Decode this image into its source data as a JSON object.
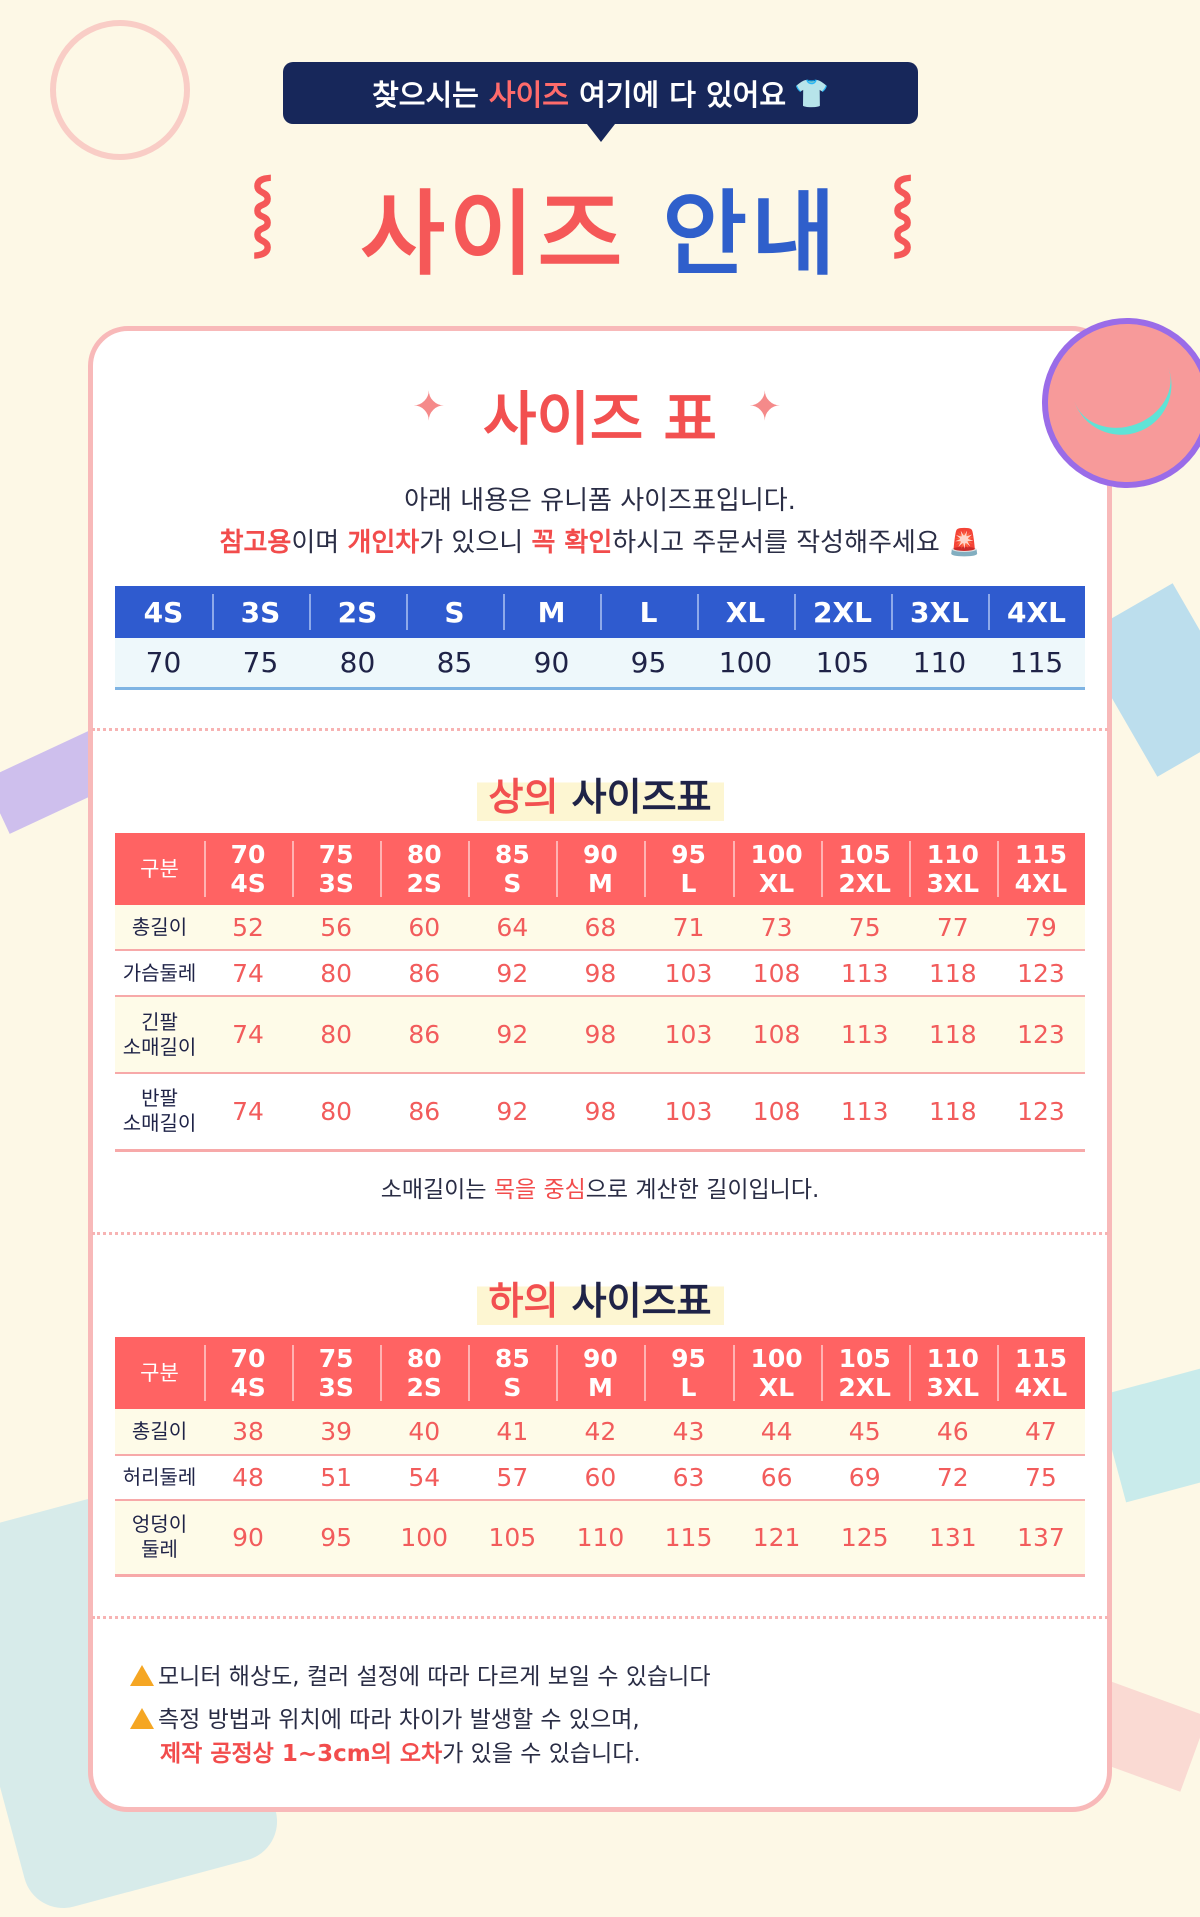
{
  "banner": {
    "pre": "찾으시는 ",
    "highlight": "사이즈",
    "post": " 여기에 다 있어요",
    "icon": "tshirt-icon"
  },
  "title": {
    "part1": "사이즈",
    "part2": "안내"
  },
  "card": {
    "subtitle": "사이즈 표",
    "intro_line1": "아래 내용은 유니폼 사이즈표입니다.",
    "intro_line2": {
      "r1": "참고용",
      "t1": "이며 ",
      "r2": "개인차",
      "t2": "가 있으니 ",
      "r3": "꼭 확인",
      "t3": "하시고 주문서를 작성해주세요",
      "icon": "siren-icon"
    },
    "size_bar": {
      "sizes": [
        "4S",
        "3S",
        "2S",
        "S",
        "M",
        "L",
        "XL",
        "2XL",
        "3XL",
        "4XL"
      ],
      "numbers": [
        "70",
        "75",
        "80",
        "85",
        "90",
        "95",
        "100",
        "105",
        "110",
        "115"
      ]
    },
    "top": {
      "title_red": "상의",
      "title_rest": " 사이즈표",
      "header": [
        [
          "구분",
          ""
        ],
        [
          "70",
          "4S"
        ],
        [
          "75",
          "3S"
        ],
        [
          "80",
          "2S"
        ],
        [
          "85",
          "S"
        ],
        [
          "90",
          "M"
        ],
        [
          "95",
          "L"
        ],
        [
          "100",
          "XL"
        ],
        [
          "105",
          "2XL"
        ],
        [
          "110",
          "3XL"
        ],
        [
          "115",
          "4XL"
        ]
      ],
      "rows": [
        {
          "label": [
            "총길이"
          ],
          "values": [
            "52",
            "56",
            "60",
            "64",
            "68",
            "71",
            "73",
            "75",
            "77",
            "79"
          ]
        },
        {
          "label": [
            "가슴둘레"
          ],
          "values": [
            "74",
            "80",
            "86",
            "92",
            "98",
            "103",
            "108",
            "113",
            "118",
            "123"
          ]
        },
        {
          "label": [
            "긴팔",
            "소매길이"
          ],
          "values": [
            "74",
            "80",
            "86",
            "92",
            "98",
            "103",
            "108",
            "113",
            "118",
            "123"
          ]
        },
        {
          "label": [
            "반팔",
            "소매길이"
          ],
          "values": [
            "74",
            "80",
            "86",
            "92",
            "98",
            "103",
            "108",
            "113",
            "118",
            "123"
          ]
        }
      ],
      "note": {
        "pre": "소매길이는 ",
        "red": "목을 중심",
        "post": "으로 계산한 길이입니다."
      }
    },
    "bottom": {
      "title_red": "하의",
      "title_rest": " 사이즈표",
      "header": [
        [
          "구분",
          ""
        ],
        [
          "70",
          "4S"
        ],
        [
          "75",
          "3S"
        ],
        [
          "80",
          "2S"
        ],
        [
          "85",
          "S"
        ],
        [
          "90",
          "M"
        ],
        [
          "95",
          "L"
        ],
        [
          "100",
          "XL"
        ],
        [
          "105",
          "2XL"
        ],
        [
          "110",
          "3XL"
        ],
        [
          "115",
          "4XL"
        ]
      ],
      "rows": [
        {
          "label": [
            "총길이"
          ],
          "values": [
            "38",
            "39",
            "40",
            "41",
            "42",
            "43",
            "44",
            "45",
            "46",
            "47"
          ]
        },
        {
          "label": [
            "허리둘레"
          ],
          "values": [
            "48",
            "51",
            "54",
            "57",
            "60",
            "63",
            "66",
            "69",
            "72",
            "75"
          ]
        },
        {
          "label": [
            "엉덩이",
            "둘레"
          ],
          "values": [
            "90",
            "95",
            "100",
            "105",
            "110",
            "115",
            "121",
            "125",
            "131",
            "137"
          ]
        }
      ]
    },
    "warnings": {
      "w1": "모니터 해상도, 컬러 설정에 따라 다르게 보일 수 있습니다",
      "w2": "측정 방법과 위치에 따라 차이가 발생할 수 있으며,",
      "w3_red": "제작 공정상 1~3cm의 오차",
      "w3_rest": "가 있을 수 있습니다."
    }
  },
  "colors": {
    "coral": "#ff6363",
    "blue": "#2f5bcf",
    "navy": "#17275a",
    "cream": "#fdf8e6"
  }
}
